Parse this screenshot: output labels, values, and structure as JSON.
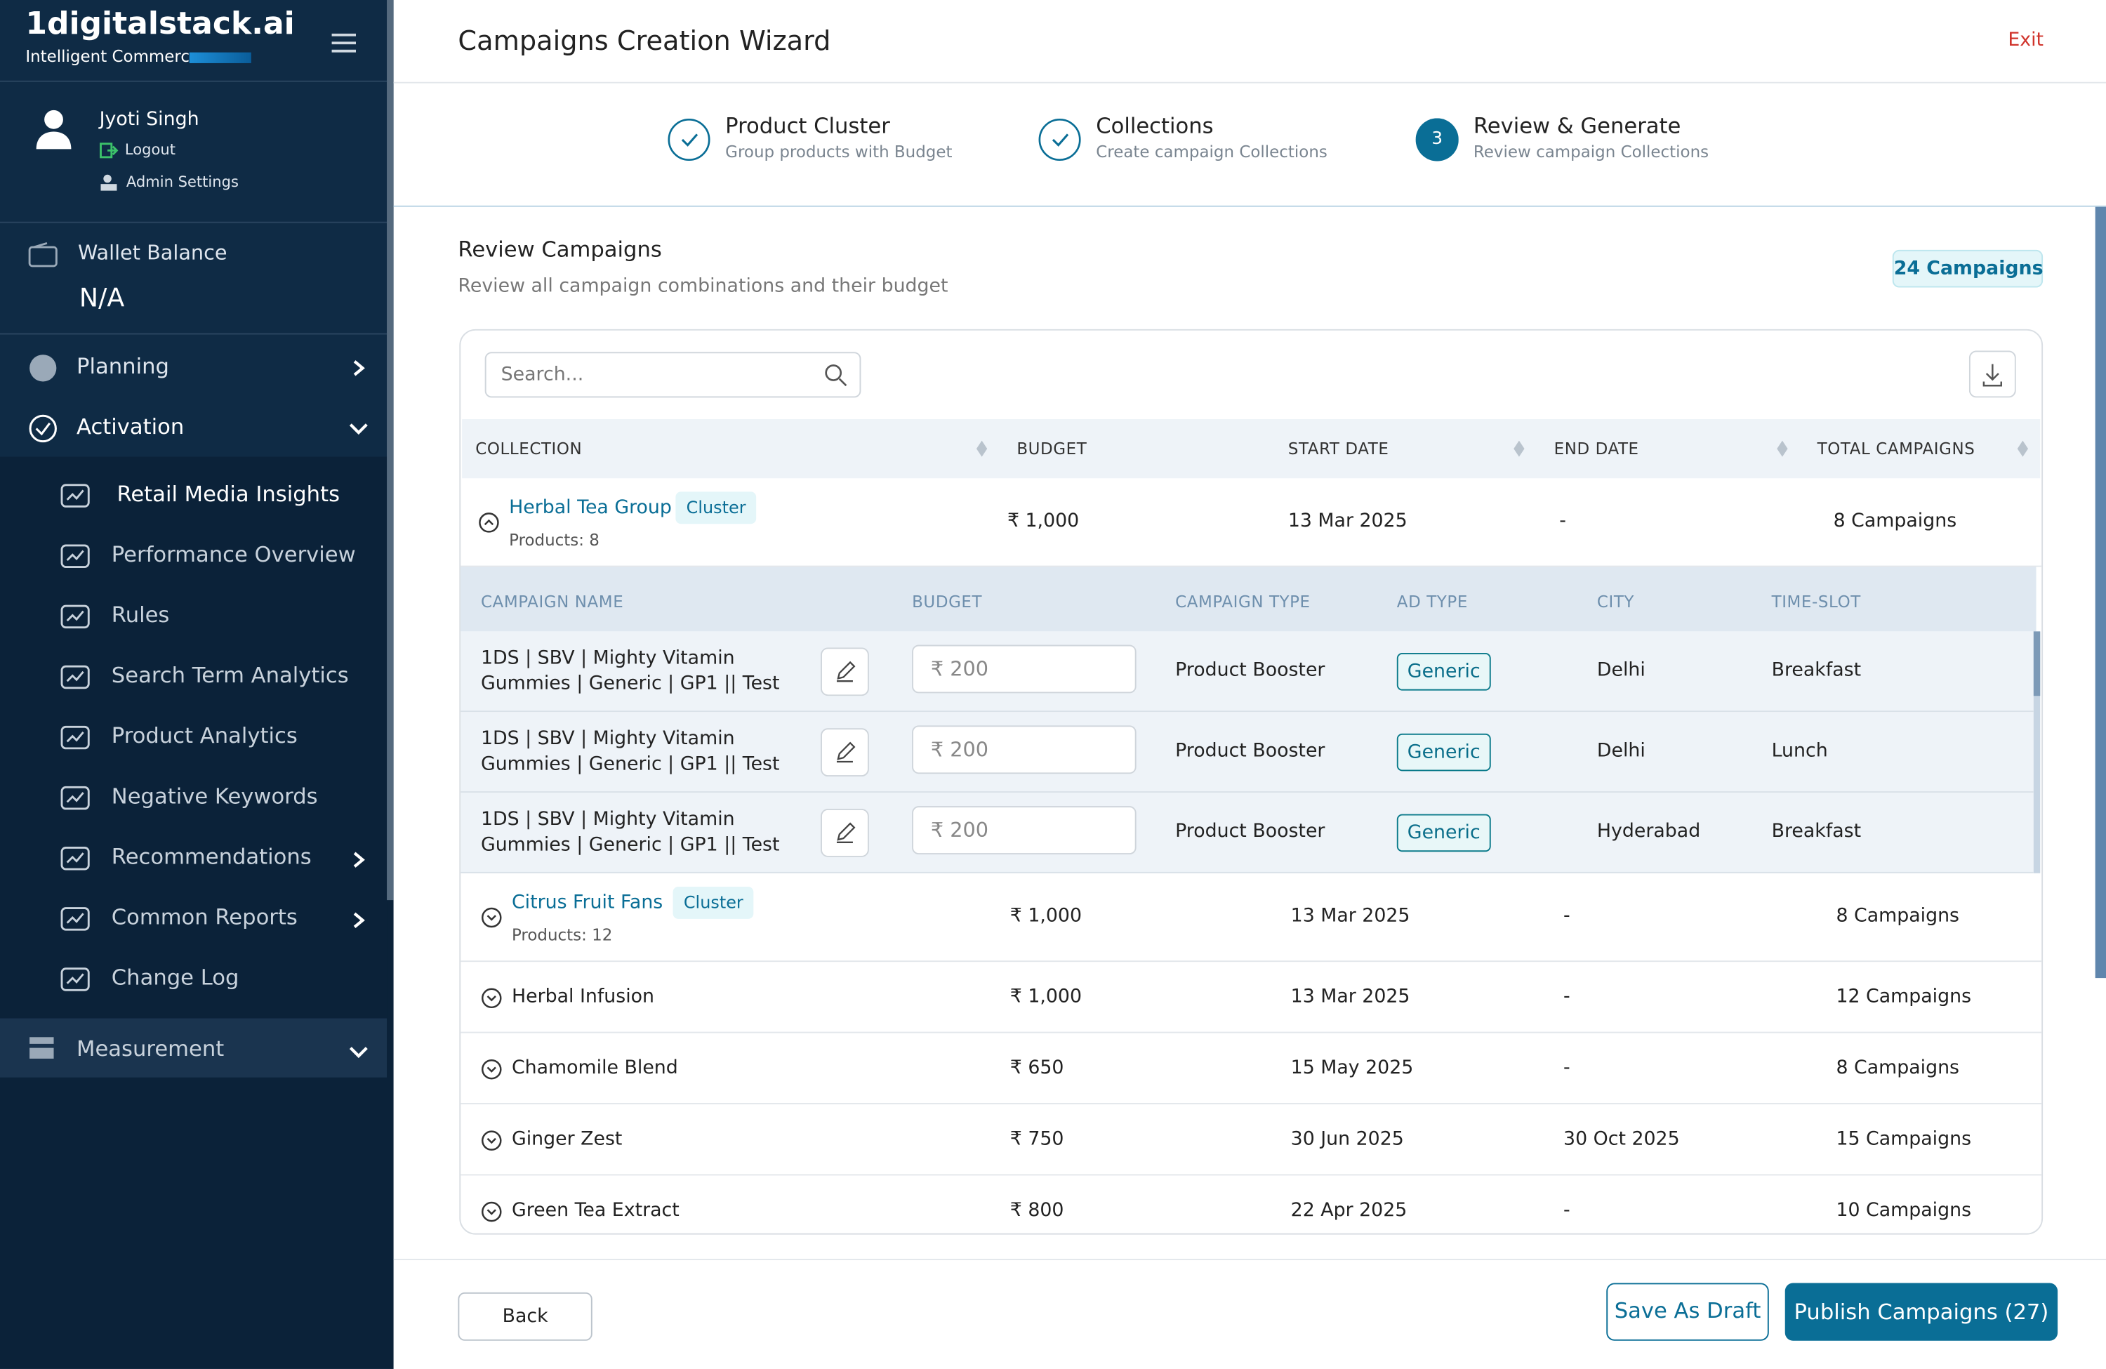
{
  "sidebar": {
    "brand": "1digitalstack.ai",
    "tagline": "Intelligent Commerce",
    "user": {
      "name": "Jyoti Singh",
      "logout": "Logout",
      "admin": "Admin Settings"
    },
    "wallet": {
      "label": "Wallet Balance",
      "value": "N/A"
    },
    "planning": "Planning",
    "activation": "Activation",
    "activation_items": [
      "Retail Media Insights",
      "Performance Overview",
      "Rules",
      "Search Term Analytics",
      "Product Analytics",
      "Negative Keywords",
      "Recommendations",
      "Common Reports",
      "Change Log"
    ],
    "measurement": "Measurement"
  },
  "header": {
    "title": "Campaigns Creation Wizard",
    "exit": "Exit"
  },
  "steps": [
    {
      "title": "Product Cluster",
      "subtitle": "Group products with Budget"
    },
    {
      "title": "Collections",
      "subtitle": "Create campaign Collections"
    },
    {
      "number": "3",
      "title": "Review  & Generate",
      "subtitle": "Review campaign Collections"
    }
  ],
  "review": {
    "title": "Review Campaigns",
    "subtitle": "Review all campaign combinations and their budget",
    "count": "24 Campaigns",
    "search_placeholder": "Search..."
  },
  "table": {
    "columns": [
      "COLLECTION",
      "BUDGET",
      "START DATE",
      "END DATE",
      "TOTAL CAMPAIGNS"
    ],
    "sub_columns": [
      "CAMPAIGN NAME",
      "BUDGET",
      "CAMPAIGN TYPE",
      "AD TYPE",
      "CITY",
      "TIME-SLOT"
    ],
    "sub_rows": [
      [
        "1DS | SBV | Mighty Vitamin Gummies | Generic | GP1 || Test",
        "₹ 200",
        "Product Booster",
        "Generic",
        "Delhi",
        "Breakfast"
      ],
      [
        "1DS | SBV | Mighty Vitamin Gummies | Generic | GP1 || Test",
        "₹ 200",
        "Product Booster",
        "Generic",
        "Delhi",
        "Lunch"
      ],
      [
        "1DS | SBV | Mighty Vitamin Gummies | Generic | GP1 || Test",
        "₹ 200",
        "Product Booster",
        "Generic",
        "Hyderabad",
        "Breakfast"
      ]
    ],
    "groups": [
      {
        "name": "Herbal Tea Group",
        "tag": "Cluster",
        "products": "Products: 8",
        "budget": "₹ 1,000",
        "start": "13 Mar 2025",
        "end": "-",
        "total": "8 Campaigns"
      },
      {
        "name": "Citrus Fruit Fans",
        "tag": "Cluster",
        "products": "Products: 12",
        "budget": "₹ 1,000",
        "start": "13 Mar 2025",
        "end": "-",
        "total": "8 Campaigns"
      },
      {
        "name": "Herbal Infusion",
        "budget": "₹ 1,000",
        "start": "13 Mar 2025",
        "end": "-",
        "total": "12 Campaigns"
      },
      {
        "name": "Chamomile Blend",
        "budget": "₹ 650",
        "start": "15 May 2025",
        "end": "-",
        "total": "8 Campaigns"
      },
      {
        "name": "Ginger Zest",
        "budget": "₹ 750",
        "start": "30 Jun 2025",
        "end": "30 Oct 2025",
        "total": "15 Campaigns"
      },
      {
        "name": "Green Tea Extract",
        "budget": "₹ 800",
        "start": "22 Apr 2025",
        "end": "-",
        "total": "10 Campaigns"
      }
    ]
  },
  "footer": {
    "back": "Back",
    "draft": "Save As Draft",
    "publish": "Publish Campaigns (27)"
  }
}
